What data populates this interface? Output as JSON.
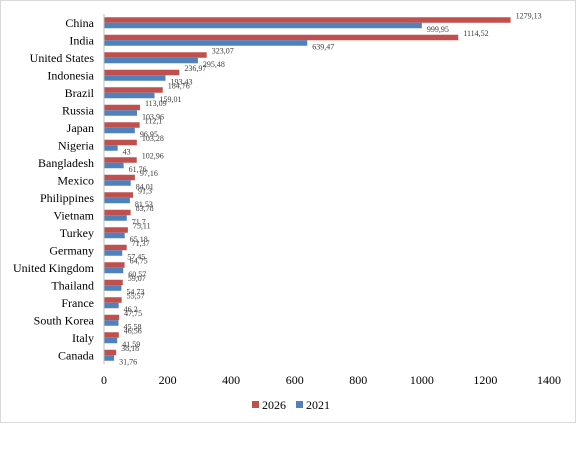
{
  "chart_data": {
    "type": "bar",
    "orientation": "horizontal",
    "categories": [
      "China",
      "India",
      "United States",
      "Indonesia",
      "Brazil",
      "Russia",
      "Japan",
      "Nigeria",
      "Bangladesh",
      "Mexico",
      "Philippines",
      "Vietnam",
      "Turkey",
      "Germany",
      "United Kingdom",
      "Thailand",
      "France",
      "South Korea",
      "Italy",
      "Canada"
    ],
    "series": [
      {
        "name": "2026",
        "color": "#c0504d",
        "values": [
          1279.13,
          1114.52,
          323.07,
          236.97,
          184.76,
          113.09,
          112.1,
          103.28,
          102.96,
          97.16,
          91.3,
          83.78,
          75.11,
          71.37,
          64.75,
          59.07,
          55.57,
          47.75,
          46.56,
          38.18
        ],
        "labels": [
          "1279,13",
          "1114,52",
          "323,07",
          "236,97",
          "184,76",
          "113,09",
          "112,1",
          "103,28",
          "102,96",
          "97,16",
          "91,3",
          "83,78",
          "75,11",
          "71,37",
          "64,75",
          "59,07",
          "55,57",
          "47,75",
          "46,56",
          "38,18"
        ]
      },
      {
        "name": "2021",
        "color": "#4f81bd",
        "values": [
          999.95,
          639.47,
          295.48,
          193.43,
          159.01,
          103.96,
          96.95,
          43,
          61.76,
          84.01,
          81.53,
          71.7,
          65.18,
          57.45,
          60.57,
          54.73,
          46.2,
          45.58,
          41.59,
          31.76
        ],
        "labels": [
          "999,95",
          "639,47",
          "295,48",
          "193,43",
          "159,01",
          "103,96",
          "96,95",
          "43",
          "61,76",
          "84,01",
          "81,53",
          "71,7",
          "65,18",
          "57,45",
          "60,57",
          "54,73",
          "46,2",
          "45,58",
          "41,59",
          "31,76"
        ]
      }
    ],
    "xlim": [
      0,
      1400
    ],
    "xticks": [
      0,
      200,
      400,
      600,
      800,
      1000,
      1200,
      1400
    ],
    "grid": false,
    "legend": "bottom"
  }
}
